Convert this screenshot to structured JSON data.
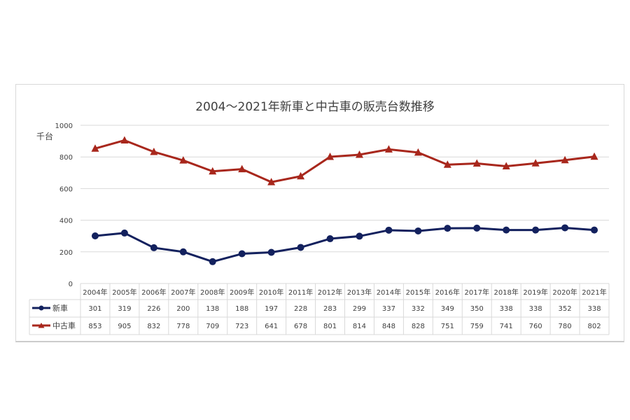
{
  "chart_data": {
    "type": "line",
    "title": "2004〜2021年新車と中古車の販売台数推移",
    "ylabel": "千台",
    "ylim": [
      0,
      1000
    ],
    "yticks": [
      0,
      200,
      400,
      600,
      800,
      1000
    ],
    "grid": true,
    "legend": "data-table",
    "categories": [
      "2004年",
      "2005年",
      "2006年",
      "2007年",
      "2008年",
      "2009年",
      "2010年",
      "2011年",
      "2012年",
      "2013年",
      "2014年",
      "2015年",
      "2016年",
      "2017年",
      "2018年",
      "2019年",
      "2020年",
      "2021年"
    ],
    "series": [
      {
        "name": "新車",
        "color": "#13215e",
        "marker": "circle",
        "values": [
          301,
          319,
          226,
          200,
          138,
          188,
          197,
          228,
          283,
          299,
          337,
          332,
          349,
          350,
          338,
          338,
          352,
          338
        ]
      },
      {
        "name": "中古車",
        "color": "#a8271c",
        "marker": "triangle",
        "values": [
          853,
          905,
          832,
          778,
          709,
          723,
          641,
          678,
          801,
          814,
          848,
          828,
          751,
          759,
          741,
          760,
          780,
          802
        ]
      }
    ]
  }
}
